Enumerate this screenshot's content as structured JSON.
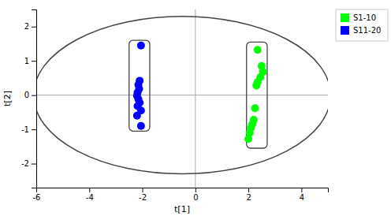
{
  "chart_data": {
    "type": "scatter",
    "xlabel": "t[1]",
    "ylabel": "t[2]",
    "xlim": [
      -6,
      5
    ],
    "ylim": [
      -2.7,
      2.5
    ],
    "xticks": [
      -6,
      -4,
      -2,
      0,
      2,
      4
    ],
    "yticks": [
      -2,
      -1,
      0,
      1,
      2
    ],
    "grid": false,
    "legend": "upper right",
    "series": [
      {
        "name": "S1-10",
        "color": "#00FF00",
        "x": [
          2.35,
          2.5,
          2.55,
          2.45,
          2.35,
          2.3,
          2.25,
          2.2,
          2.15,
          2.1,
          2.05,
          2.0
        ],
        "values": [
          1.32,
          0.85,
          0.68,
          0.52,
          0.38,
          0.28,
          -0.38,
          -0.72,
          -0.85,
          -0.95,
          -1.1,
          -1.28
        ]
      },
      {
        "name": "S11-20",
        "color": "#0000FF",
        "x": [
          -2.05,
          -2.1,
          -2.15,
          -2.12,
          -2.18,
          -2.2,
          -2.15,
          -2.1,
          -2.18,
          -2.05,
          -2.2,
          -2.05
        ],
        "values": [
          1.45,
          0.42,
          0.3,
          0.18,
          0.08,
          -0.02,
          -0.12,
          -0.22,
          -0.32,
          -0.45,
          -0.6,
          -0.9
        ]
      }
    ],
    "crosshair": {
      "x": 0,
      "y": 0,
      "color": "#aaaaaa"
    },
    "ellipse": {
      "cx": -0.5,
      "cy": 0.0,
      "width": 11.2,
      "height": 4.6,
      "color": "#444444"
    },
    "boxes": [
      {
        "x": -2.5,
        "y": -1.05,
        "width": 0.78,
        "height": 2.65,
        "color": "#444444"
      },
      {
        "x": 1.93,
        "y": -1.55,
        "width": 0.78,
        "height": 3.1,
        "color": "#444444"
      }
    ]
  }
}
